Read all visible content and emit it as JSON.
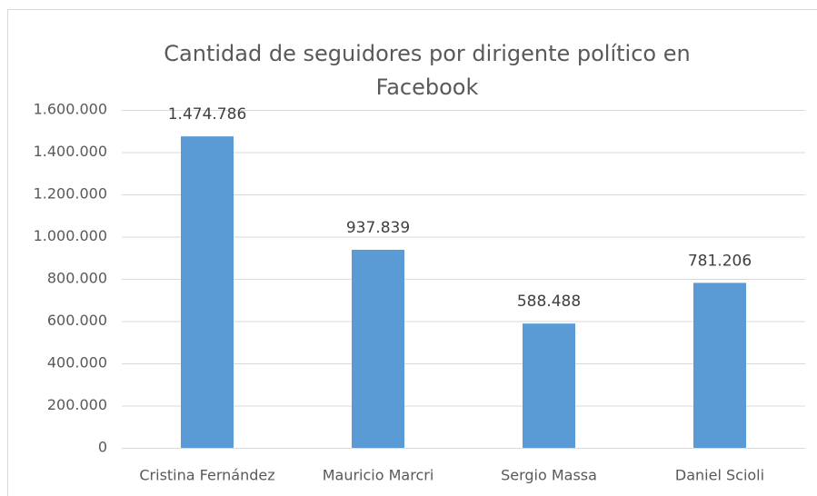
{
  "chart_data": {
    "type": "bar",
    "title": "Cantidad de seguidores por dirigente político en Facebook",
    "categories": [
      "Cristina Fernández",
      "Mauricio Marcri",
      "Sergio Massa",
      "Daniel Scioli"
    ],
    "values": [
      1474786,
      937839,
      588488,
      781206
    ],
    "value_labels": [
      "1.474.786",
      "937.839",
      "588.488",
      "781.206"
    ],
    "color": "#5b9bd5",
    "ylim": [
      0,
      1600000
    ],
    "yticks": [
      0,
      {
        "value": 200000,
        "label": "200.000"
      },
      {
        "value": 400000,
        "label": "400.000"
      },
      {
        "value": 600000,
        "label": "600.000"
      },
      {
        "value": 800000,
        "label": "800.000"
      },
      {
        "value": 1000000,
        "label": "1.000.000"
      },
      {
        "value": 1200000,
        "label": "1.200.000"
      },
      {
        "value": 1400000,
        "label": "1.400.000"
      },
      {
        "value": 1600000,
        "label": "1.600.000"
      }
    ],
    "grid": true
  }
}
